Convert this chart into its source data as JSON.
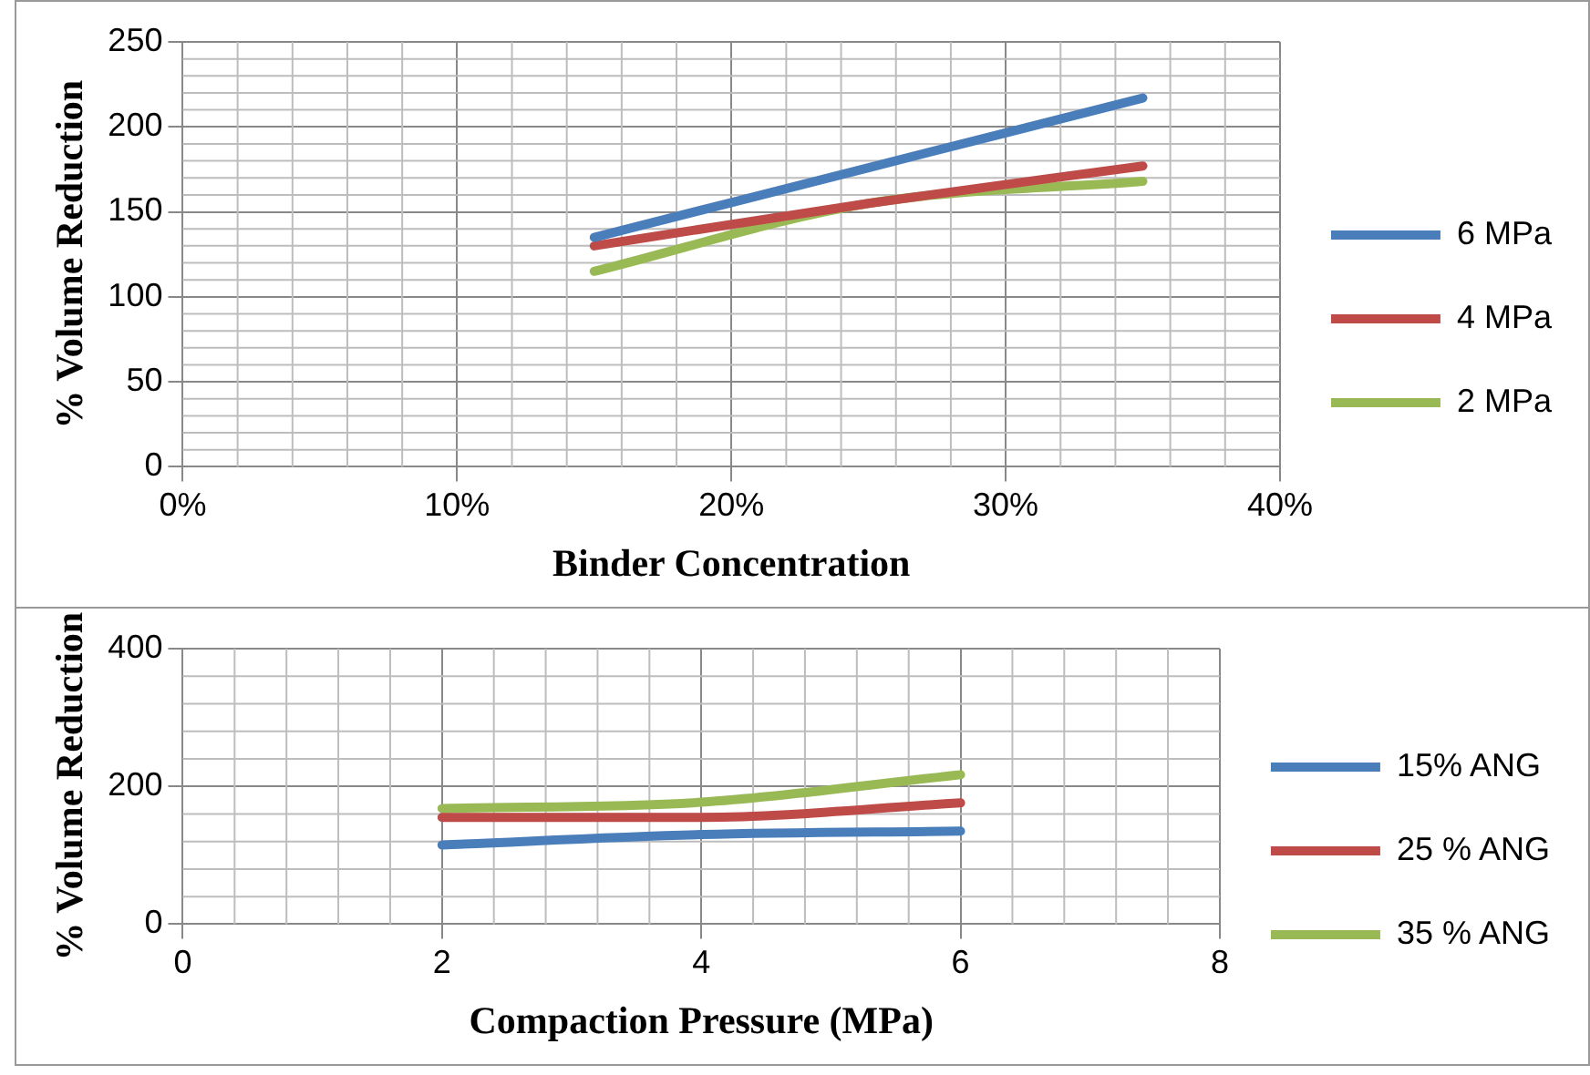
{
  "chart_data": [
    {
      "type": "line",
      "xlabel": "Binder Concentration",
      "ylabel": "% Volume Reduction",
      "x": [
        15,
        25,
        35
      ],
      "series": [
        {
          "name": "6 MPa",
          "color": "#4a7ebb",
          "values": [
            135,
            176,
            217
          ]
        },
        {
          "name": "4 MPa",
          "color": "#be4b48",
          "values": [
            130,
            155,
            177
          ]
        },
        {
          "name": "2 MPa",
          "color": "#98b954",
          "values": [
            115,
            155,
            168
          ]
        }
      ],
      "xlim": [
        0,
        40
      ],
      "xticks": [
        {
          "value": 0,
          "label": "0%"
        },
        {
          "value": 10,
          "label": "10%"
        },
        {
          "value": 20,
          "label": "20%"
        },
        {
          "value": 30,
          "label": "30%"
        },
        {
          "value": 40,
          "label": "40%"
        }
      ],
      "ylim": [
        0,
        250
      ],
      "yticks": [
        0,
        50,
        100,
        150,
        200,
        250
      ],
      "grid": true,
      "legend": "right",
      "marker": "none",
      "line_style": "solid"
    },
    {
      "type": "line",
      "xlabel": "Compaction Pressure (MPa)",
      "ylabel": "% Volume Reduction",
      "x": [
        2,
        4,
        6
      ],
      "series": [
        {
          "name": "15% ANG",
          "color": "#4a7ebb",
          "values": [
            115,
            130,
            135
          ]
        },
        {
          "name": "25 % ANG",
          "color": "#be4b48",
          "values": [
            155,
            155,
            176
          ]
        },
        {
          "name": "35 % ANG",
          "color": "#98b954",
          "values": [
            168,
            177,
            217
          ]
        }
      ],
      "xlim": [
        0,
        8
      ],
      "xticks": [
        0,
        2,
        4,
        6,
        8
      ],
      "ylim": [
        0,
        400
      ],
      "yticks": [
        0,
        200,
        400
      ],
      "grid": true,
      "legend": "right",
      "marker": "none",
      "line_style": "solid"
    }
  ]
}
